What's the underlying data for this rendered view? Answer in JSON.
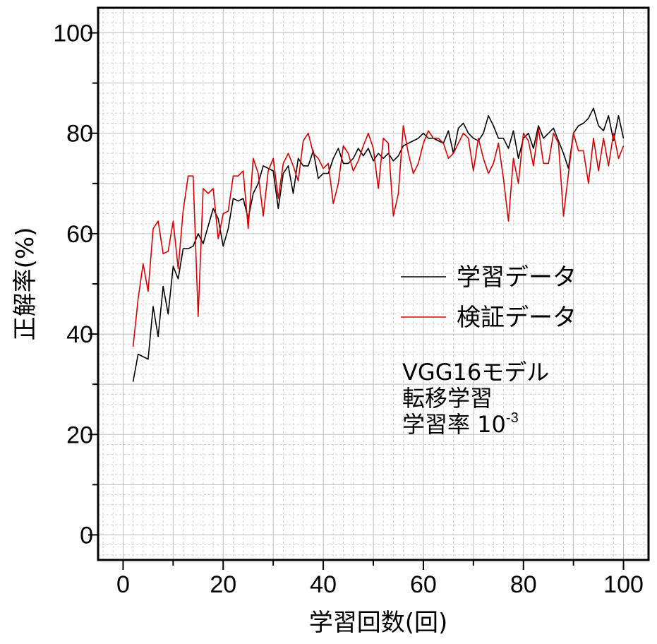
{
  "chart_data": {
    "type": "line",
    "title": "",
    "xlabel": "学習回数(回)",
    "ylabel": "正解率(%)",
    "xlim": [
      -5,
      105
    ],
    "ylim": [
      -5,
      105
    ],
    "xticks": [
      0,
      20,
      40,
      60,
      80,
      100
    ],
    "yticks": [
      0,
      20,
      40,
      60,
      80,
      100
    ],
    "grid": true,
    "legend_position": "right-middle",
    "x": [
      2,
      3,
      4,
      5,
      6,
      7,
      8,
      9,
      10,
      11,
      12,
      13,
      14,
      15,
      16,
      17,
      18,
      19,
      20,
      21,
      22,
      23,
      24,
      25,
      26,
      27,
      28,
      29,
      30,
      31,
      32,
      33,
      34,
      35,
      36,
      37,
      38,
      39,
      40,
      41,
      42,
      43,
      44,
      45,
      46,
      47,
      48,
      49,
      50,
      51,
      52,
      53,
      54,
      55,
      56,
      57,
      58,
      59,
      60,
      61,
      62,
      63,
      64,
      65,
      66,
      67,
      68,
      69,
      70,
      71,
      72,
      73,
      74,
      75,
      76,
      77,
      78,
      79,
      80,
      81,
      82,
      83,
      84,
      85,
      86,
      87,
      88,
      89,
      90,
      91,
      92,
      93,
      94,
      95,
      96,
      97,
      98,
      99,
      100
    ],
    "series": [
      {
        "name": "学習データ",
        "color": "#000000",
        "values": [
          30.5,
          36,
          35.5,
          35,
          45.5,
          39.5,
          49.5,
          44,
          53.5,
          51,
          57,
          57,
          57.5,
          60,
          58,
          61.5,
          65,
          63,
          57.5,
          61,
          67,
          66.5,
          67,
          63,
          68,
          70,
          73.5,
          73,
          72.5,
          65,
          72,
          73.5,
          68,
          75,
          73.5,
          73.5,
          76.5,
          71,
          72,
          72,
          75,
          77,
          74,
          74,
          75,
          77,
          75.5,
          77,
          74.5,
          76,
          75,
          76,
          74.5,
          75.5,
          77.5,
          78,
          78.5,
          79,
          80,
          79,
          79,
          78.5,
          78,
          80.5,
          76,
          81,
          82,
          80,
          79,
          78.5,
          80,
          83.5,
          81.5,
          79,
          79,
          77,
          80.5,
          75,
          79,
          80,
          77,
          81.5,
          79,
          80,
          81,
          78.5,
          76,
          73,
          80,
          81.5,
          82,
          83,
          85,
          81.5,
          80.5,
          83.5,
          78.5,
          83.5,
          79
        ]
      },
      {
        "name": "検証データ",
        "color": "#dd0000",
        "values": [
          37.5,
          47,
          54,
          48.5,
          61,
          62.5,
          56,
          56.5,
          62.5,
          53,
          64.5,
          71.5,
          71.5,
          43.5,
          69,
          68,
          69,
          59,
          64,
          64.5,
          71.5,
          71.5,
          72.5,
          61,
          75,
          72,
          63.5,
          72.5,
          75,
          67,
          74,
          76,
          73.5,
          70.5,
          78.5,
          80,
          76,
          75,
          73,
          74,
          66,
          70,
          77.5,
          76,
          72.5,
          74.5,
          77.5,
          80,
          77,
          69,
          79,
          78,
          63.5,
          68,
          81.5,
          76,
          72,
          74,
          78,
          80.5,
          79,
          79,
          78,
          75,
          76,
          78,
          80,
          79,
          72.5,
          79,
          75,
          72,
          74,
          78,
          71,
          62.5,
          75,
          70,
          80,
          78.5,
          73.5,
          81,
          74,
          74,
          80,
          78,
          63.5,
          72,
          80,
          76.5,
          76.5,
          70,
          79,
          72.5,
          79,
          73.5,
          80,
          75,
          77.5
        ]
      }
    ]
  },
  "legend": [
    {
      "label": "学習データ",
      "color": "#000000"
    },
    {
      "label": "検証データ",
      "color": "#dd0000"
    }
  ],
  "annotation": {
    "line1": "VGG16モデル",
    "line2": "転移学習",
    "line3_prefix": "学習率 10",
    "line3_superscript": "-3"
  }
}
